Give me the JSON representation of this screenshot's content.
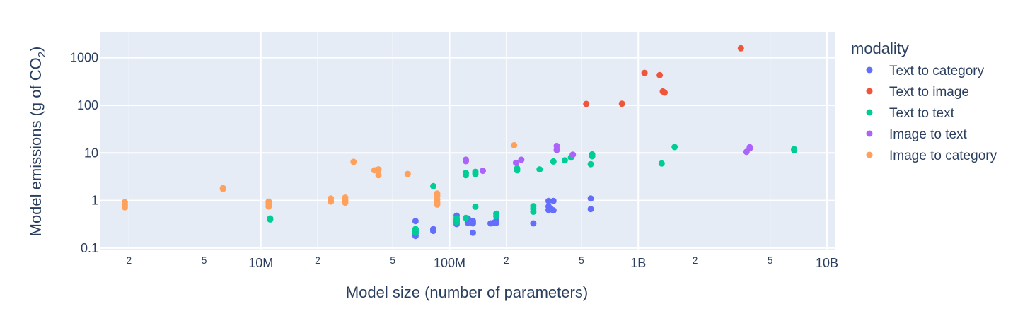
{
  "chart_data": {
    "type": "scatter",
    "x_scale": "log",
    "y_scale": "log",
    "xlabel": "Model size (number of parameters)",
    "ylabel_main": "Model emissions (g of CO",
    "ylabel_sub": "2",
    "ylabel_close": ")",
    "xlim": [
      1400000,
      11000000000
    ],
    "ylim": [
      0.09,
      3500
    ],
    "x_ticks": [
      {
        "value": 2000000,
        "label": "2",
        "major": false
      },
      {
        "value": 5000000,
        "label": "5",
        "major": false
      },
      {
        "value": 10000000,
        "label": "10M",
        "major": true
      },
      {
        "value": 20000000,
        "label": "2",
        "major": false
      },
      {
        "value": 50000000,
        "label": "5",
        "major": false
      },
      {
        "value": 100000000,
        "label": "100M",
        "major": true
      },
      {
        "value": 200000000,
        "label": "2",
        "major": false
      },
      {
        "value": 500000000,
        "label": "5",
        "major": false
      },
      {
        "value": 1000000000,
        "label": "1B",
        "major": true
      },
      {
        "value": 2000000000,
        "label": "2",
        "major": false
      },
      {
        "value": 5000000000,
        "label": "5",
        "major": false
      },
      {
        "value": 10000000000,
        "label": "10B",
        "major": true
      }
    ],
    "y_ticks": [
      {
        "value": 0.1,
        "label": "0.1"
      },
      {
        "value": 1,
        "label": "1"
      },
      {
        "value": 10,
        "label": "10"
      },
      {
        "value": 100,
        "label": "100"
      },
      {
        "value": 1000,
        "label": "1000"
      }
    ],
    "legend_title": "modality",
    "series": [
      {
        "name": "Text to category",
        "color": "#636efa",
        "points": [
          [
            66000000,
            0.37
          ],
          [
            66000000,
            0.25
          ],
          [
            66000000,
            0.22
          ],
          [
            66000000,
            0.2
          ],
          [
            66000000,
            0.18
          ],
          [
            82000000,
            0.25
          ],
          [
            82000000,
            0.23
          ],
          [
            109000000,
            0.48
          ],
          [
            109000000,
            0.4
          ],
          [
            109000000,
            0.35
          ],
          [
            109000000,
            0.32
          ],
          [
            125000000,
            0.42
          ],
          [
            125000000,
            0.34
          ],
          [
            133000000,
            0.37
          ],
          [
            133000000,
            0.33
          ],
          [
            133000000,
            0.21
          ],
          [
            165000000,
            0.33
          ],
          [
            172000000,
            0.34
          ],
          [
            177000000,
            0.38
          ],
          [
            177000000,
            0.34
          ],
          [
            278000000,
            0.33
          ],
          [
            335000000,
            0.98
          ],
          [
            335000000,
            0.75
          ],
          [
            335000000,
            0.63
          ],
          [
            345000000,
            0.66
          ],
          [
            355000000,
            0.98
          ],
          [
            355000000,
            0.62
          ],
          [
            560000000,
            1.1
          ],
          [
            560000000,
            0.66
          ]
        ]
      },
      {
        "name": "Text to image",
        "color": "#ef553b",
        "points": [
          [
            530000000,
            107
          ],
          [
            820000000,
            108
          ],
          [
            1080000000,
            480
          ],
          [
            1300000000,
            430
          ],
          [
            1350000000,
            195
          ],
          [
            1380000000,
            185
          ],
          [
            3500000000,
            1580
          ]
        ]
      },
      {
        "name": "Text to text",
        "color": "#00cc96",
        "points": [
          [
            11200000,
            0.42
          ],
          [
            11200000,
            0.4
          ],
          [
            66000000,
            0.25
          ],
          [
            66000000,
            0.23
          ],
          [
            66000000,
            0.21
          ],
          [
            82000000,
            2.0
          ],
          [
            109000000,
            0.42
          ],
          [
            109000000,
            0.38
          ],
          [
            109000000,
            0.35
          ],
          [
            122000000,
            0.43
          ],
          [
            122000000,
            3.8
          ],
          [
            122000000,
            3.4
          ],
          [
            137000000,
            4.0
          ],
          [
            137000000,
            3.6
          ],
          [
            137000000,
            0.74
          ],
          [
            177000000,
            0.53
          ],
          [
            177000000,
            0.47
          ],
          [
            228000000,
            4.7
          ],
          [
            228000000,
            4.3
          ],
          [
            278000000,
            0.76
          ],
          [
            278000000,
            0.67
          ],
          [
            278000000,
            0.58
          ],
          [
            300000000,
            4.5
          ],
          [
            355000000,
            6.6
          ],
          [
            408000000,
            7.0
          ],
          [
            440000000,
            8.0
          ],
          [
            560000000,
            5.8
          ],
          [
            570000000,
            9.3
          ],
          [
            570000000,
            8.5
          ],
          [
            1330000000,
            6.0
          ],
          [
            1560000000,
            13.3
          ],
          [
            6700000000,
            12.0
          ],
          [
            6700000000,
            11.4
          ]
        ]
      },
      {
        "name": "Image to text",
        "color": "#ab63fa",
        "points": [
          [
            122000000,
            7.2
          ],
          [
            122000000,
            6.7
          ],
          [
            150000000,
            4.2
          ],
          [
            225000000,
            6.2
          ],
          [
            240000000,
            7.2
          ],
          [
            370000000,
            14
          ],
          [
            370000000,
            11.5
          ],
          [
            450000000,
            9.2
          ],
          [
            3750000000,
            10.5
          ],
          [
            3900000000,
            12.5
          ],
          [
            3900000000,
            13.2
          ]
        ]
      },
      {
        "name": "Image to category",
        "color": "#ffa15a",
        "points": [
          [
            1900000,
            0.92
          ],
          [
            1900000,
            0.82
          ],
          [
            1900000,
            0.72
          ],
          [
            6300000,
            1.82
          ],
          [
            6300000,
            1.75
          ],
          [
            11000000,
            0.95
          ],
          [
            11000000,
            0.85
          ],
          [
            11000000,
            0.75
          ],
          [
            23500000,
            1.1
          ],
          [
            23500000,
            0.95
          ],
          [
            28000000,
            1.15
          ],
          [
            28000000,
            1.0
          ],
          [
            28000000,
            0.9
          ],
          [
            31000000,
            6.5
          ],
          [
            40000000,
            4.3
          ],
          [
            42000000,
            4.5
          ],
          [
            42000000,
            3.4
          ],
          [
            60000000,
            3.6
          ],
          [
            86000000,
            1.4
          ],
          [
            86000000,
            1.25
          ],
          [
            86000000,
            1.05
          ],
          [
            86000000,
            0.9
          ],
          [
            86000000,
            0.82
          ],
          [
            220000000,
            14.5
          ]
        ]
      }
    ]
  }
}
